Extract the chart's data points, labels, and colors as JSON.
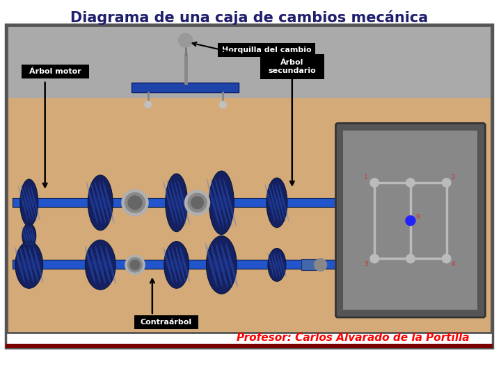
{
  "title": "Diagrama de una caja de cambios mecánica",
  "title_color": "#1F1F6E",
  "title_fontsize": 15,
  "professor_text": "Profesor: Carlos Alvarado de la Portilla",
  "professor_color": "#FF0000",
  "professor_fontsize": 11,
  "bg_color": "#FFFFFF",
  "slide_border_color": "#555555",
  "diagram_bg_tan": "#D4AA78",
  "diagram_bg_gray": "#AAAAAA",
  "blue_shaft": "#2255CC",
  "blue_gear_dark": "#142060",
  "blue_gear_mid": "#1E3A9A",
  "blue_gear_light": "#3366DD",
  "gray_bearing": "#999999",
  "gray_bearing_dark": "#666666",
  "bottom_bar_color": "#7B0000",
  "gear_sel_outer": "#555555",
  "gear_sel_inner": "#888888",
  "gear_sel_lines": "#BBBBBB",
  "horquilla_label": "Horquilla del cambio",
  "arbol_motor_label": "Árbol motor",
  "arbol_sec_label": "Árbol\nsecundario",
  "contrabol_label": "Contraárbol"
}
